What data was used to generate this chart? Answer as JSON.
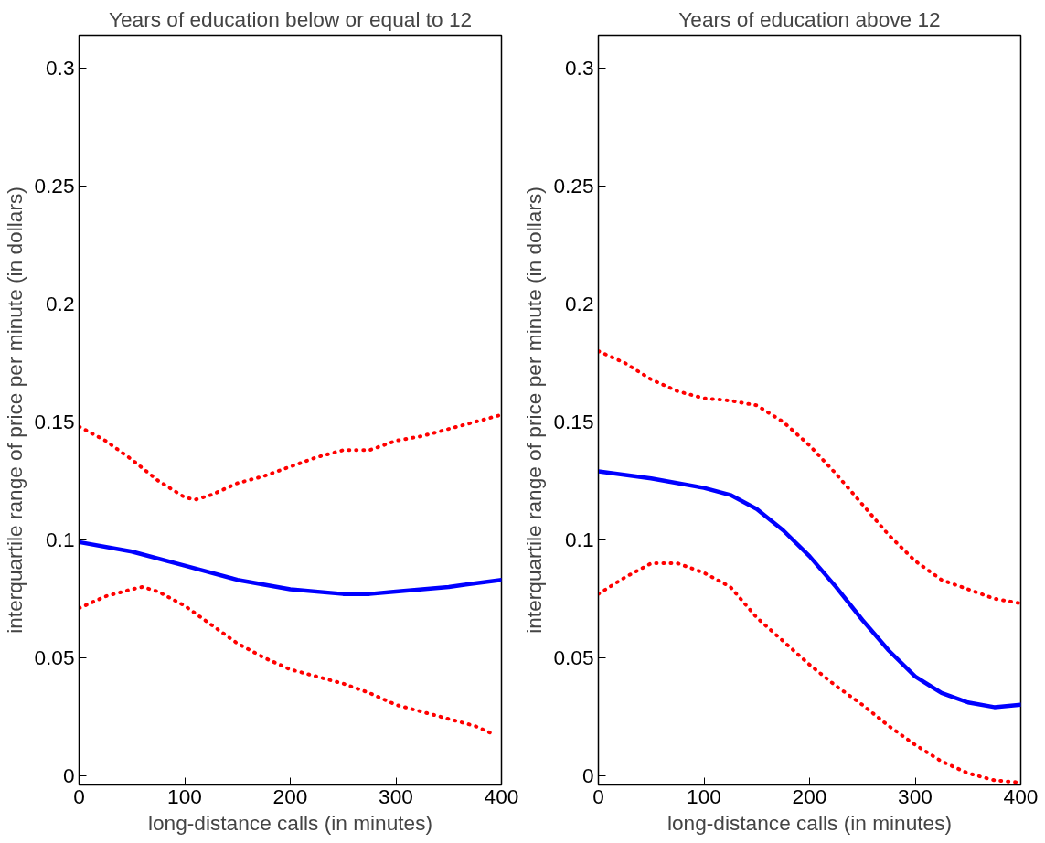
{
  "chart_data": [
    {
      "type": "line",
      "title": "Years of education below or equal to 12",
      "xlabel": "long-distance calls (in minutes)",
      "ylabel": "interquartile range of price per minute (in dollars)",
      "xlim": [
        0,
        400
      ],
      "ylim": [
        -0.004,
        0.314
      ],
      "xticks": [
        0,
        100,
        200,
        300,
        400
      ],
      "yticks": [
        0,
        0.05,
        0.1,
        0.15,
        0.2,
        0.25,
        0.3
      ],
      "grid": false,
      "series": [
        {
          "color": "#ff0000",
          "line_style": "dotted",
          "x": [
            0,
            25,
            50,
            75,
            100,
            110,
            125,
            150,
            175,
            200,
            225,
            250,
            275,
            300,
            325,
            350,
            375,
            400
          ],
          "values": [
            0.148,
            0.142,
            0.134,
            0.125,
            0.118,
            0.117,
            0.119,
            0.124,
            0.127,
            0.131,
            0.135,
            0.138,
            0.138,
            0.142,
            0.144,
            0.147,
            0.15,
            0.153
          ]
        },
        {
          "color": "#0000ff",
          "line_style": "solid",
          "x": [
            0,
            50,
            100,
            150,
            200,
            250,
            275,
            300,
            350,
            400
          ],
          "values": [
            0.099,
            0.095,
            0.089,
            0.083,
            0.079,
            0.077,
            0.077,
            0.078,
            0.08,
            0.083
          ]
        },
        {
          "color": "#ff0000",
          "line_style": "dotted",
          "x": [
            0,
            25,
            50,
            60,
            75,
            100,
            125,
            150,
            175,
            200,
            225,
            250,
            275,
            300,
            325,
            350,
            375,
            390
          ],
          "values": [
            0.071,
            0.076,
            0.079,
            0.08,
            0.078,
            0.072,
            0.064,
            0.056,
            0.05,
            0.045,
            0.042,
            0.039,
            0.035,
            0.03,
            0.027,
            0.024,
            0.021,
            0.018
          ]
        }
      ]
    },
    {
      "type": "line",
      "title": "Years of education above 12",
      "xlabel": "long-distance calls (in minutes)",
      "ylabel": "interquartile range of price per minute (in dollars)",
      "xlim": [
        0,
        400
      ],
      "ylim": [
        -0.004,
        0.314
      ],
      "xticks": [
        0,
        100,
        200,
        300,
        400
      ],
      "yticks": [
        0,
        0.05,
        0.1,
        0.15,
        0.2,
        0.25,
        0.3
      ],
      "grid": false,
      "series": [
        {
          "color": "#ff0000",
          "line_style": "dotted",
          "x": [
            0,
            25,
            50,
            75,
            100,
            125,
            150,
            175,
            200,
            225,
            250,
            275,
            300,
            325,
            350,
            375,
            400
          ],
          "values": [
            0.18,
            0.175,
            0.168,
            0.163,
            0.16,
            0.159,
            0.157,
            0.15,
            0.14,
            0.128,
            0.115,
            0.102,
            0.091,
            0.083,
            0.079,
            0.075,
            0.073
          ]
        },
        {
          "color": "#0000ff",
          "line_style": "solid",
          "x": [
            0,
            50,
            100,
            125,
            150,
            175,
            200,
            225,
            250,
            275,
            300,
            325,
            350,
            375,
            400
          ],
          "values": [
            0.129,
            0.126,
            0.122,
            0.119,
            0.113,
            0.104,
            0.093,
            0.08,
            0.066,
            0.053,
            0.042,
            0.035,
            0.031,
            0.029,
            0.03
          ]
        },
        {
          "color": "#ff0000",
          "line_style": "dotted",
          "x": [
            0,
            25,
            50,
            75,
            100,
            125,
            150,
            175,
            200,
            225,
            250,
            275,
            300,
            325,
            350,
            375,
            400
          ],
          "values": [
            0.077,
            0.084,
            0.09,
            0.09,
            0.086,
            0.08,
            0.067,
            0.057,
            0.047,
            0.038,
            0.03,
            0.021,
            0.013,
            0.006,
            0.001,
            -0.002,
            -0.003
          ]
        }
      ]
    }
  ]
}
